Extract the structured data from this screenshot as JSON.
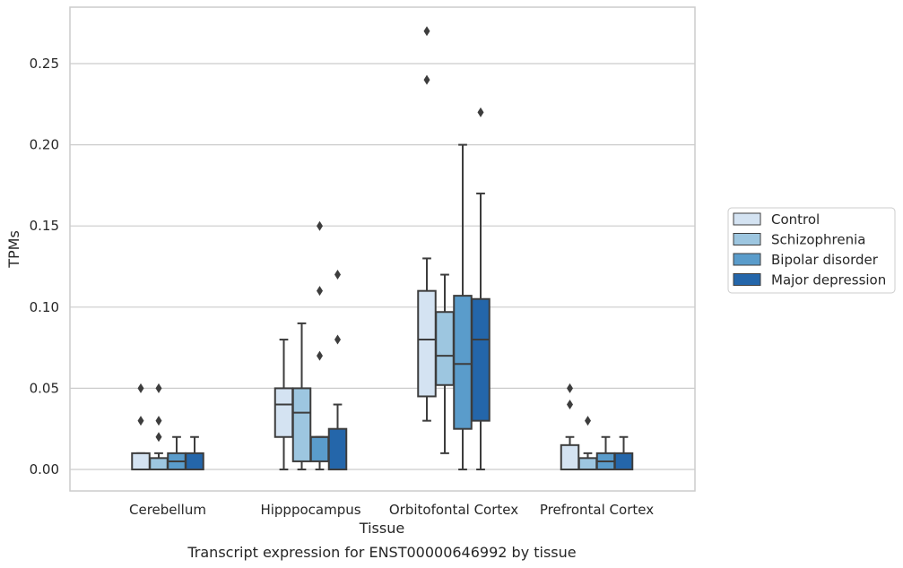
{
  "chart_data": {
    "type": "box",
    "title": "",
    "caption": "Transcript expression for ENST00000646992 by tissue",
    "xlabel": "Tissue",
    "ylabel": "TPMs",
    "ylim": [
      -0.013,
      0.285
    ],
    "yticks": [
      "0.00",
      "0.05",
      "0.10",
      "0.15",
      "0.20",
      "0.25"
    ],
    "grid": "horizontal",
    "legend_placement": "right",
    "categories": [
      "Cerebellum",
      "Hipppocampus",
      "Orbitofontal Cortex",
      "Prefrontal Cortex"
    ],
    "series": [
      {
        "name": "Control",
        "color": "#d4e3f2",
        "boxes": [
          {
            "q1": 0.0,
            "median": 0.0,
            "q3": 0.01,
            "whisker_low": 0.0,
            "whisker_high": 0.01,
            "outliers": [
              0.03,
              0.05
            ]
          },
          {
            "q1": 0.02,
            "median": 0.04,
            "q3": 0.05,
            "whisker_low": 0.0,
            "whisker_high": 0.08,
            "outliers": []
          },
          {
            "q1": 0.045,
            "median": 0.08,
            "q3": 0.11,
            "whisker_low": 0.03,
            "whisker_high": 0.13,
            "outliers": [
              0.24,
              0.27
            ]
          },
          {
            "q1": 0.0,
            "median": 0.0,
            "q3": 0.015,
            "whisker_low": 0.0,
            "whisker_high": 0.02,
            "outliers": [
              0.04,
              0.05
            ]
          }
        ]
      },
      {
        "name": "Schizophrenia",
        "color": "#9dc6e0",
        "boxes": [
          {
            "q1": 0.0,
            "median": 0.0,
            "q3": 0.007,
            "whisker_low": 0.0,
            "whisker_high": 0.01,
            "outliers": [
              0.02,
              0.03,
              0.05
            ]
          },
          {
            "q1": 0.005,
            "median": 0.035,
            "q3": 0.05,
            "whisker_low": 0.0,
            "whisker_high": 0.09,
            "outliers": []
          },
          {
            "q1": 0.052,
            "median": 0.07,
            "q3": 0.097,
            "whisker_low": 0.01,
            "whisker_high": 0.12,
            "outliers": []
          },
          {
            "q1": 0.0,
            "median": 0.0,
            "q3": 0.007,
            "whisker_low": 0.0,
            "whisker_high": 0.01,
            "outliers": [
              0.03
            ]
          }
        ]
      },
      {
        "name": "Bipolar disorder",
        "color": "#5a9ccb",
        "boxes": [
          {
            "q1": 0.0,
            "median": 0.005,
            "q3": 0.01,
            "whisker_low": 0.0,
            "whisker_high": 0.02,
            "outliers": []
          },
          {
            "q1": 0.005,
            "median": 0.02,
            "q3": 0.02,
            "whisker_low": 0.0,
            "whisker_high": 0.02,
            "outliers": [
              0.07,
              0.11,
              0.15
            ]
          },
          {
            "q1": 0.025,
            "median": 0.065,
            "q3": 0.107,
            "whisker_low": 0.0,
            "whisker_high": 0.2,
            "outliers": []
          },
          {
            "q1": 0.0,
            "median": 0.005,
            "q3": 0.01,
            "whisker_low": 0.0,
            "whisker_high": 0.02,
            "outliers": []
          }
        ]
      },
      {
        "name": "Major depression",
        "color": "#2466aa",
        "boxes": [
          {
            "q1": 0.0,
            "median": 0.0,
            "q3": 0.01,
            "whisker_low": 0.0,
            "whisker_high": 0.02,
            "outliers": []
          },
          {
            "q1": 0.0,
            "median": 0.0,
            "q3": 0.025,
            "whisker_low": 0.0,
            "whisker_high": 0.04,
            "outliers": [
              0.08,
              0.12
            ]
          },
          {
            "q1": 0.03,
            "median": 0.08,
            "q3": 0.105,
            "whisker_low": 0.0,
            "whisker_high": 0.17,
            "outliers": [
              0.22
            ]
          },
          {
            "q1": 0.0,
            "median": 0.0,
            "q3": 0.01,
            "whisker_low": 0.0,
            "whisker_high": 0.02,
            "outliers": []
          }
        ]
      }
    ]
  }
}
